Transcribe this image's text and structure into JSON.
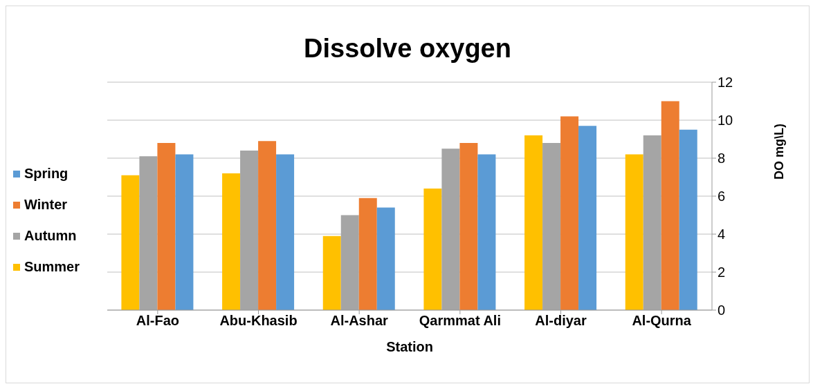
{
  "chart_data": {
    "type": "bar",
    "title": "Dissolve oxygen",
    "xlabel": "Station",
    "ylabel": "DO mg\\L)",
    "categories": [
      "Al-Fao",
      "Abu-Khasib",
      "Al-Ashar",
      "Qarmmat Ali",
      "Al-diyar",
      "Al-Qurna"
    ],
    "series": [
      {
        "name": "Summer",
        "color": "#ffc000",
        "values": [
          7.1,
          7.2,
          3.9,
          6.4,
          9.2,
          8.2
        ]
      },
      {
        "name": "Autumn",
        "color": "#a5a5a5",
        "values": [
          8.1,
          8.4,
          5.0,
          8.5,
          8.8,
          9.2
        ]
      },
      {
        "name": "Winter",
        "color": "#ed7d31",
        "values": [
          8.8,
          8.9,
          5.9,
          8.8,
          10.2,
          11.0
        ]
      },
      {
        "name": "Spring",
        "color": "#5b9bd5",
        "values": [
          8.2,
          8.2,
          5.4,
          8.2,
          9.7,
          9.5
        ]
      }
    ],
    "ylim": [
      0,
      12
    ],
    "yticks": [
      0,
      2,
      4,
      6,
      8,
      10,
      12
    ],
    "grid": "y",
    "legend": "left"
  }
}
